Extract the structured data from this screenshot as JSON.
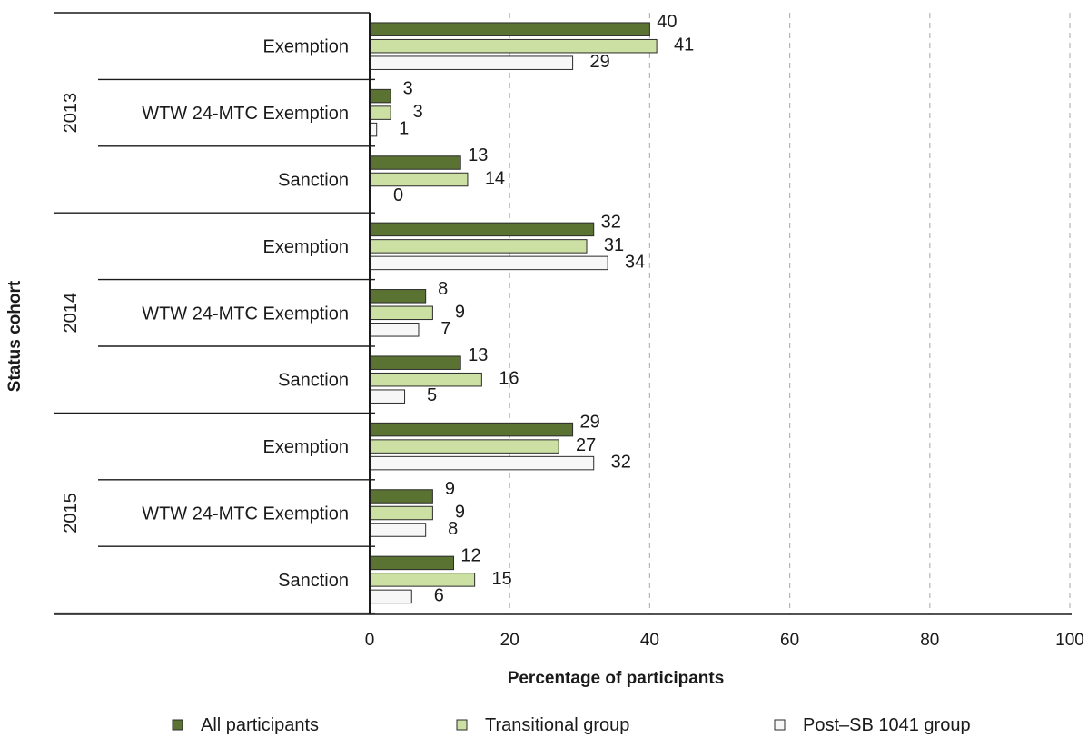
{
  "chart_data": {
    "type": "bar",
    "orientation": "horizontal",
    "title": "",
    "xlabel": "Percentage of participants",
    "ylabel": "Status cohort",
    "xlim": [
      0,
      100
    ],
    "xticks": [
      "0",
      "20",
      "40",
      "60",
      "80",
      "100"
    ],
    "grid": "vertical dashed",
    "legend_position": "bottom",
    "groups": [
      {
        "label": "2013",
        "categories": [
          "Exemption",
          "WTW 24-MTC Exemption",
          "Sanction"
        ]
      },
      {
        "label": "2014",
        "categories": [
          "Exemption",
          "WTW 24-MTC Exemption",
          "Sanction"
        ]
      },
      {
        "label": "2015",
        "categories": [
          "Exemption",
          "WTW 24-MTC Exemption",
          "Sanction"
        ]
      }
    ],
    "series": [
      {
        "name": "All participants",
        "color": "#5a7332",
        "values": [
          40,
          3,
          13,
          32,
          8,
          13,
          29,
          9,
          12
        ],
        "labels": [
          "40",
          "3",
          "13",
          "32",
          "8",
          "13",
          "29",
          "9",
          "12"
        ]
      },
      {
        "name": "Transitional group",
        "color": "#cde0a4",
        "values": [
          41,
          3,
          14,
          31,
          9,
          16,
          27,
          9,
          15
        ],
        "labels": [
          "41",
          "3",
          "14",
          "31",
          "9",
          "16",
          "27",
          "9",
          "15"
        ]
      },
      {
        "name": "Post–SB 1041 group",
        "color": "#f7f7f7",
        "values": [
          29,
          1,
          0,
          34,
          7,
          5,
          32,
          8,
          6
        ],
        "labels": [
          "29",
          "1",
          "0",
          "34",
          "7",
          "5",
          "32",
          "8",
          "6"
        ]
      }
    ]
  }
}
